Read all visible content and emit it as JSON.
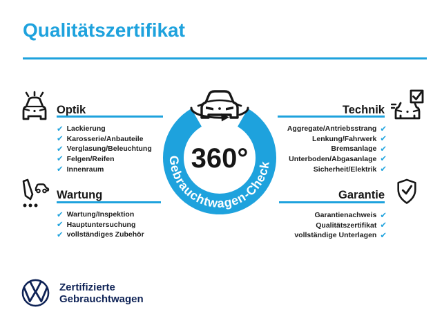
{
  "title": "Qualitätszertifikat",
  "colors": {
    "accent": "#1EA2DD",
    "navy": "#0F2356",
    "ink": "#161616"
  },
  "center": {
    "degrees": "360°",
    "ring_text": "Gebrauchtwagen-Check"
  },
  "check_glyph": "✔",
  "sections": {
    "optik": {
      "title": "Optik",
      "items": [
        "Lackierung",
        "Karosserie/Anbauteile",
        "Verglasung/Beleuchtung",
        "Felgen/Reifen",
        "Innenraum"
      ]
    },
    "wartung": {
      "title": "Wartung",
      "items": [
        "Wartung/Inspektion",
        "Hauptuntersuchung",
        "vollständiges Zubehör"
      ]
    },
    "technik": {
      "title": "Technik",
      "items": [
        "Aggregate/Antriebsstrang",
        "Lenkung/Fahrwerk",
        "Bremsanlage",
        "Unterboden/Abgasanlage",
        "Sicherheit/Elektrik"
      ]
    },
    "garantie": {
      "title": "Garantie",
      "items": [
        "Garantienachweis",
        "Qualitätszertifikat",
        "vollständige Unterlagen"
      ]
    }
  },
  "footer": {
    "line1": "Zertifizierte",
    "line2": "Gebrauchtwagen"
  }
}
